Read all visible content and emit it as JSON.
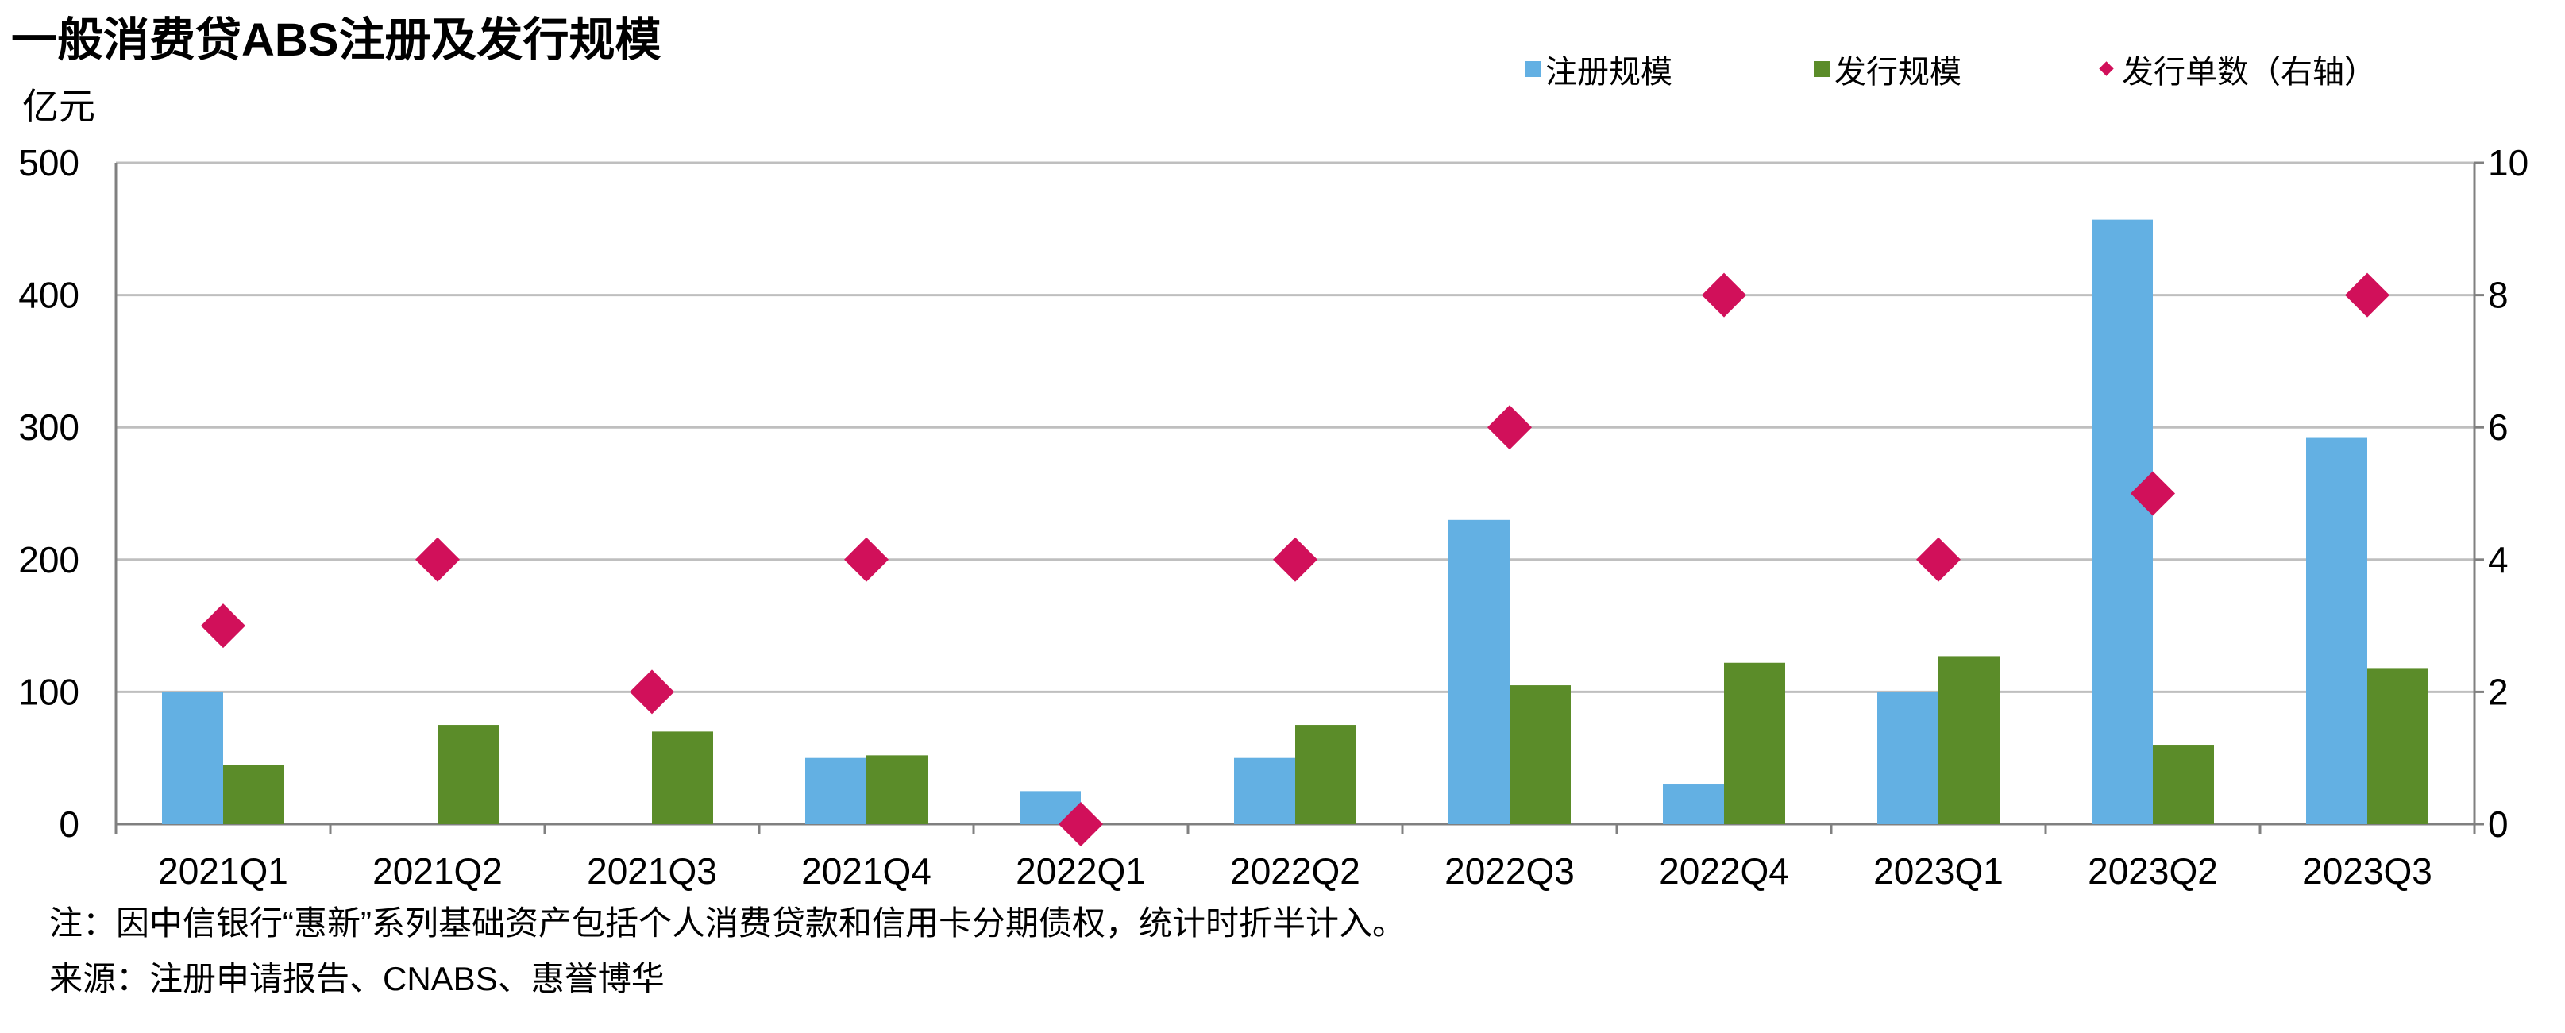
{
  "chart_data": {
    "type": "bar",
    "title": "一般消费贷ABS注册及发行规模",
    "ylabel": "亿元",
    "categories": [
      "2021Q1",
      "2021Q2",
      "2021Q3",
      "2021Q4",
      "2022Q1",
      "2022Q2",
      "2022Q3",
      "2022Q4",
      "2023Q1",
      "2023Q2",
      "2023Q3"
    ],
    "ylim": [
      0,
      500
    ],
    "y_ticks": [
      0,
      100,
      200,
      300,
      400,
      500
    ],
    "y2lim": [
      0,
      10
    ],
    "y2_ticks": [
      0,
      2,
      4,
      6,
      8,
      10
    ],
    "grid": true,
    "legend_position": "top-right",
    "series": [
      {
        "name": "注册规模",
        "type": "bar",
        "axis": "left",
        "color": "#63B0E3",
        "values": [
          100,
          0,
          0,
          50,
          25,
          50,
          230,
          30,
          100,
          457,
          292
        ]
      },
      {
        "name": "发行规模",
        "type": "bar",
        "axis": "left",
        "color": "#5B8C29",
        "values": [
          45,
          75,
          70,
          52,
          0,
          75,
          105,
          122,
          127,
          60,
          118
        ]
      },
      {
        "name": "发行单数（右轴）",
        "type": "scatter",
        "axis": "right",
        "marker": "diamond",
        "color": "#D1105A",
        "values": [
          3,
          4,
          2,
          4,
          0,
          4,
          6,
          8,
          4,
          5,
          8
        ]
      }
    ]
  },
  "notes": [
    "注：因中信银行“惠新”系列基础资产包括个人消费贷款和信用卡分期债权，统计时折半计入。",
    "来源：注册申请报告、CNABS、惠誉博华"
  ],
  "colors": {
    "grid": "#BFBFBF",
    "axis": "#808080"
  }
}
